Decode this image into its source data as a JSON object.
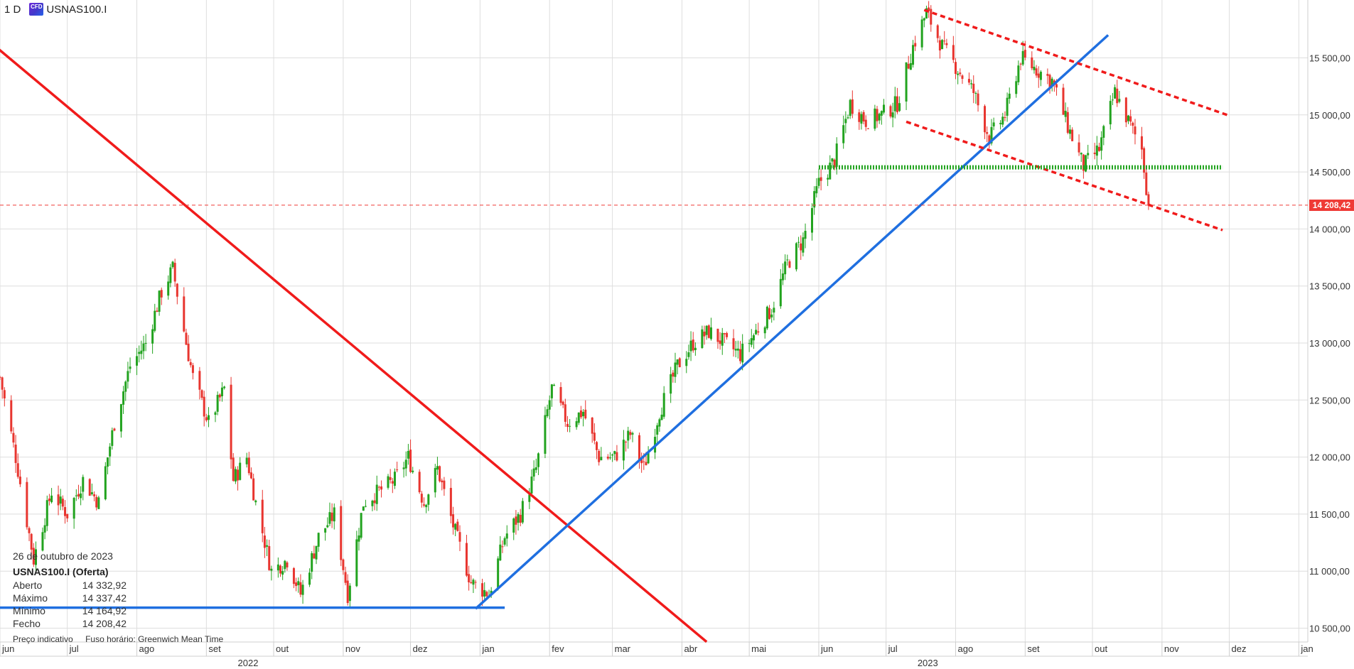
{
  "header": {
    "timeframe": "1 D",
    "icon": "cfd-icon",
    "symbol": "USNAS100.I"
  },
  "legend": {
    "date": "26 de outubro de 2023",
    "instrument": "USNAS100.I (Oferta)",
    "rows": [
      {
        "label": "Aberto",
        "value": "14 332,92"
      },
      {
        "label": "Máximo",
        "value": "14 337,42"
      },
      {
        "label": "Mínimo",
        "value": "14 164,92"
      },
      {
        "label": "Fecho",
        "value": "14 208,42"
      }
    ]
  },
  "footer": {
    "indicative": "Preço indicativo",
    "timezone": "Fuso horário: Greenwich Mean Time"
  },
  "last_price": "14 208,42",
  "colors": {
    "up": "#22a31f",
    "down": "#e8352f",
    "trend_red": "#f01b1b",
    "trend_blue": "#1f6fe0",
    "grid": "#dedede"
  },
  "chart_data": {
    "type": "candlestick",
    "instrument": "USNAS100.I",
    "interval": "1 D",
    "x_range": [
      "2022-06-01",
      "2024-01-05"
    ],
    "ylim": [
      10350,
      16000
    ],
    "grid": true,
    "y_ticks": [
      {
        "value": 10500,
        "label": "10 500,00"
      },
      {
        "value": 11000,
        "label": "11 000,00"
      },
      {
        "value": 11500,
        "label": "11 500,00"
      },
      {
        "value": 12000,
        "label": "12 000,00"
      },
      {
        "value": 12500,
        "label": "12 500,00"
      },
      {
        "value": 13000,
        "label": "13 000,00"
      },
      {
        "value": 13500,
        "label": "13 500,00"
      },
      {
        "value": 14000,
        "label": "14 000,00"
      },
      {
        "value": 14500,
        "label": "14 500,00"
      },
      {
        "value": 15000,
        "label": "15 000,00"
      },
      {
        "value": 15500,
        "label": "15 500,00"
      }
    ],
    "x_ticks": [
      {
        "date": "2022-06-01",
        "label": "jun"
      },
      {
        "date": "2022-07-01",
        "label": "jul"
      },
      {
        "date": "2022-08-01",
        "label": "ago"
      },
      {
        "date": "2022-09-01",
        "label": "set"
      },
      {
        "date": "2022-10-01",
        "label": "out"
      },
      {
        "date": "2022-11-01",
        "label": "nov"
      },
      {
        "date": "2022-12-01",
        "label": "dez"
      },
      {
        "date": "2023-01-01",
        "label": "jan"
      },
      {
        "date": "2023-02-01",
        "label": "fev"
      },
      {
        "date": "2023-03-01",
        "label": "mar"
      },
      {
        "date": "2023-04-01",
        "label": "abr"
      },
      {
        "date": "2023-05-01",
        "label": "mai"
      },
      {
        "date": "2023-06-01",
        "label": "jun"
      },
      {
        "date": "2023-07-01",
        "label": "jul"
      },
      {
        "date": "2023-08-01",
        "label": "ago"
      },
      {
        "date": "2023-09-01",
        "label": "set"
      },
      {
        "date": "2023-10-01",
        "label": "out"
      },
      {
        "date": "2023-11-01",
        "label": "nov"
      },
      {
        "date": "2023-12-01",
        "label": "dez"
      },
      {
        "date": "2024-01-01",
        "label": "jan"
      }
    ],
    "year_labels": [
      {
        "date": "2022-09-15",
        "label": "2022"
      },
      {
        "date": "2023-07-15",
        "label": "2023"
      }
    ],
    "price_path": [
      [
        "2022-06-01",
        12700
      ],
      [
        "2022-06-08",
        12000
      ],
      [
        "2022-06-16",
        11100
      ],
      [
        "2022-06-24",
        11700
      ],
      [
        "2022-07-01",
        11500
      ],
      [
        "2022-07-08",
        11800
      ],
      [
        "2022-07-15",
        11600
      ],
      [
        "2022-07-22",
        12300
      ],
      [
        "2022-07-29",
        12800
      ],
      [
        "2022-08-05",
        13000
      ],
      [
        "2022-08-12",
        13450
      ],
      [
        "2022-08-17",
        13650
      ],
      [
        "2022-08-23",
        13000
      ],
      [
        "2022-08-26",
        12700
      ],
      [
        "2022-09-02",
        12300
      ],
      [
        "2022-09-09",
        12600
      ],
      [
        "2022-09-13",
        11800
      ],
      [
        "2022-09-19",
        12000
      ],
      [
        "2022-09-23",
        11600
      ],
      [
        "2022-09-30",
        11000
      ],
      [
        "2022-10-07",
        11100
      ],
      [
        "2022-10-13",
        10800
      ],
      [
        "2022-10-21",
        11300
      ],
      [
        "2022-10-28",
        11500
      ],
      [
        "2022-11-03",
        10800
      ],
      [
        "2022-11-10",
        11600
      ],
      [
        "2022-11-17",
        11700
      ],
      [
        "2022-11-24",
        11800
      ],
      [
        "2022-11-30",
        12000
      ],
      [
        "2022-12-07",
        11600
      ],
      [
        "2022-12-13",
        11900
      ],
      [
        "2022-12-20",
        11400
      ],
      [
        "2022-12-28",
        10900
      ],
      [
        "2023-01-05",
        10800
      ],
      [
        "2023-01-12",
        11300
      ],
      [
        "2023-01-19",
        11500
      ],
      [
        "2023-01-26",
        11900
      ],
      [
        "2023-02-02",
        12600
      ],
      [
        "2023-02-09",
        12300
      ],
      [
        "2023-02-16",
        12400
      ],
      [
        "2023-02-23",
        12000
      ],
      [
        "2023-03-02",
        12000
      ],
      [
        "2023-03-09",
        12200
      ],
      [
        "2023-03-15",
        11900
      ],
      [
        "2023-03-22",
        12400
      ],
      [
        "2023-03-30",
        12800
      ],
      [
        "2023-04-06",
        13000
      ],
      [
        "2023-04-13",
        13100
      ],
      [
        "2023-04-20",
        13000
      ],
      [
        "2023-04-27",
        12900
      ],
      [
        "2023-05-04",
        13100
      ],
      [
        "2023-05-11",
        13300
      ],
      [
        "2023-05-18",
        13700
      ],
      [
        "2023-05-25",
        13900
      ],
      [
        "2023-06-01",
        14400
      ],
      [
        "2023-06-08",
        14600
      ],
      [
        "2023-06-15",
        15100
      ],
      [
        "2023-06-22",
        14950
      ],
      [
        "2023-06-29",
        15000
      ],
      [
        "2023-07-06",
        15100
      ],
      [
        "2023-07-13",
        15600
      ],
      [
        "2023-07-19",
        15900
      ],
      [
        "2023-07-26",
        15600
      ],
      [
        "2023-08-02",
        15400
      ],
      [
        "2023-08-09",
        15200
      ],
      [
        "2023-08-16",
        14800
      ],
      [
        "2023-08-23",
        15000
      ],
      [
        "2023-08-30",
        15500
      ],
      [
        "2023-09-06",
        15400
      ],
      [
        "2023-09-13",
        15300
      ],
      [
        "2023-09-20",
        14900
      ],
      [
        "2023-09-27",
        14550
      ],
      [
        "2023-10-04",
        14700
      ],
      [
        "2023-10-11",
        15200
      ],
      [
        "2023-10-18",
        14900
      ],
      [
        "2023-10-23",
        14700
      ],
      [
        "2023-10-26",
        14208
      ]
    ],
    "annotations": [
      {
        "type": "trendline",
        "color": "red",
        "style": "solid",
        "from": [
          "2022-05-16",
          15830
        ],
        "to": [
          "2023-04-12",
          10380
        ]
      },
      {
        "type": "trendline",
        "color": "blue",
        "style": "solid",
        "from": [
          "2022-12-30",
          10670
        ],
        "to": [
          "2023-10-08",
          15700
        ]
      },
      {
        "type": "hline",
        "color": "blue",
        "style": "solid",
        "from": [
          "2022-05-20",
          10680
        ],
        "to": [
          "2023-01-12",
          10680
        ]
      },
      {
        "type": "trendline",
        "color": "red",
        "style": "dashed",
        "from": [
          "2023-07-18",
          15920
        ],
        "to": [
          "2023-11-30",
          15000
        ]
      },
      {
        "type": "trendline",
        "color": "red",
        "style": "dashed",
        "from": [
          "2023-07-10",
          14940
        ],
        "to": [
          "2023-11-28",
          13990
        ]
      },
      {
        "type": "hline",
        "color": "green",
        "style": "dotted",
        "from": [
          "2023-06-01",
          14540
        ],
        "to": [
          "2023-11-28",
          14540
        ]
      },
      {
        "type": "hline",
        "color": "red",
        "style": "dashed",
        "value": 14208.42
      }
    ]
  }
}
